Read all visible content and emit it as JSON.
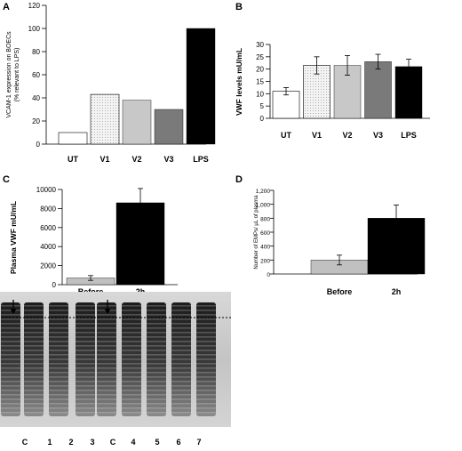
{
  "panels": {
    "A": "A",
    "B": "B",
    "C": "C",
    "D": "D"
  },
  "chart_data": [
    {
      "id": "A",
      "type": "bar",
      "categories": [
        "UT",
        "V1",
        "V2",
        "V3",
        "LPS"
      ],
      "values": [
        10,
        43,
        38,
        30,
        100
      ],
      "ylabel_lines": [
        "VCAM-1 expression on BOECs",
        "(% relevant to LPS)"
      ],
      "ylim": [
        0,
        120
      ],
      "yticks": [
        0,
        20,
        40,
        60,
        80,
        100,
        120
      ],
      "fills": [
        "#ffffff",
        "dots",
        "#c8c8c8",
        "#7a7a7a",
        "#000000"
      ],
      "grid": false
    },
    {
      "id": "B",
      "type": "bar",
      "categories": [
        "UT",
        "V1",
        "V2",
        "V3",
        "LPS"
      ],
      "values": [
        11,
        21.5,
        21.5,
        23,
        21
      ],
      "errors": [
        1.5,
        3.5,
        4,
        3,
        3
      ],
      "ylabel": "VWF levels mU/mL",
      "ylim": [
        0,
        30
      ],
      "yticks": [
        0,
        5,
        10,
        15,
        20,
        25,
        30
      ],
      "fills": [
        "#ffffff",
        "dots",
        "#c8c8c8",
        "#7a7a7a",
        "#000000"
      ],
      "grid": false
    },
    {
      "id": "C",
      "type": "bar",
      "categories": [
        "Before",
        "2h"
      ],
      "values": [
        700,
        8600
      ],
      "errors": [
        250,
        1500
      ],
      "ylabel": "Plasma VWF mU/mL",
      "ylim": [
        0,
        10000
      ],
      "yticks": [
        0,
        2000,
        4000,
        6000,
        8000,
        10000
      ],
      "fills": [
        "#c0c0c0",
        "#000000"
      ],
      "grid": false
    },
    {
      "id": "D",
      "type": "bar",
      "categories": [
        "Before",
        "2h"
      ],
      "values": [
        200,
        800
      ],
      "errors": [
        70,
        190
      ],
      "ylabel": "Number of EMPs/ µL of plasma",
      "ylim": [
        0,
        1200
      ],
      "yticks": [
        0,
        200,
        400,
        600,
        800,
        1000,
        1200
      ],
      "tick_labels": [
        "0",
        "200",
        "400",
        "600",
        "800",
        "1,000",
        "1,200"
      ],
      "fills": [
        "#c0c0c0",
        "#000000"
      ],
      "grid": false
    }
  ],
  "gel": {
    "lanes": [
      "C",
      "1",
      "2",
      "3",
      "C",
      "4",
      "5",
      "6",
      "7"
    ]
  }
}
